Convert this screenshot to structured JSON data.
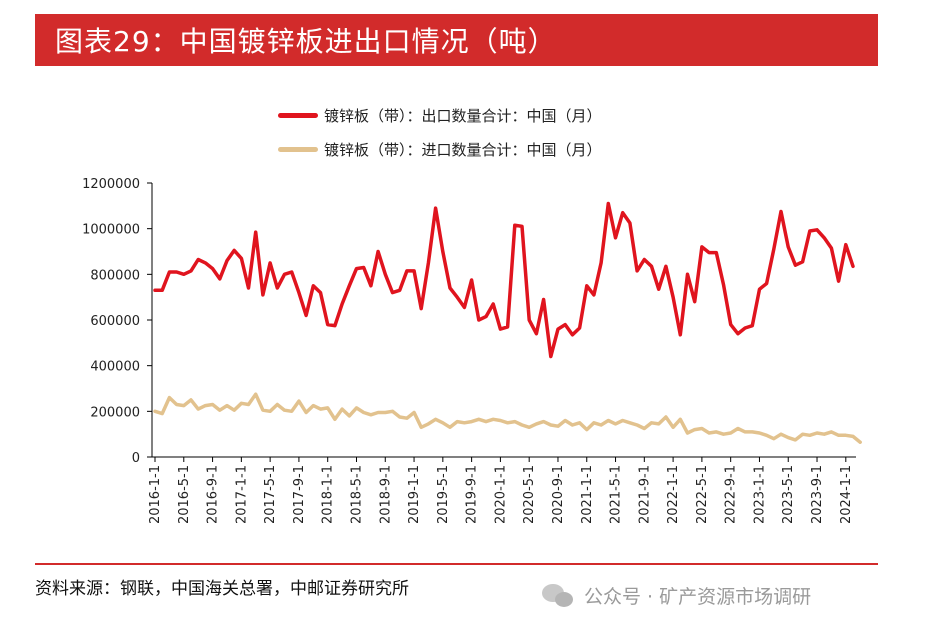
{
  "header": {
    "title": "图表29：中国镀锌板进出口情况（吨）"
  },
  "footer": {
    "source": "资料来源：钢联，中国海关总署，中邮证券研究所",
    "watermark": "公众号 · 矿产资源市场调研"
  },
  "colors": {
    "accent": "#d22b2b",
    "export_line": "#e0141e",
    "import_line": "#e2c28e"
  },
  "chart_data": {
    "type": "line",
    "title": "",
    "xlabel": "",
    "ylabel": "",
    "ylim": [
      0,
      1200000
    ],
    "y_ticks": [
      "0",
      "200000",
      "400000",
      "600000",
      "800000",
      "1000000",
      "1200000"
    ],
    "x_tick_labels": [
      "2016-1-1",
      "2016-5-1",
      "2016-9-1",
      "2017-1-1",
      "2017-5-1",
      "2017-9-1",
      "2018-1-1",
      "2018-5-1",
      "2018-9-1",
      "2019-1-1",
      "2019-5-1",
      "2019-9-1",
      "2020-1-1",
      "2020-5-1",
      "2020-9-1",
      "2021-1-1",
      "2021-5-1",
      "2021-9-1",
      "2022-1-1",
      "2022-5-1",
      "2022-9-1",
      "2023-1-1",
      "2023-5-1",
      "2023-9-1",
      "2024-1-1"
    ],
    "x_start": "2016-01",
    "frequency": "monthly",
    "grid": false,
    "legend_position": "top",
    "series": [
      {
        "name": "镀锌板（带）：出口数量合计：中国（月）",
        "values": [
          730000,
          730000,
          810000,
          810000,
          800000,
          815000,
          865000,
          850000,
          825000,
          780000,
          860000,
          905000,
          870000,
          740000,
          985000,
          710000,
          850000,
          740000,
          800000,
          810000,
          720000,
          620000,
          750000,
          720000,
          580000,
          575000,
          670000,
          750000,
          825000,
          830000,
          750000,
          900000,
          800000,
          720000,
          730000,
          815000,
          815000,
          650000,
          850000,
          1090000,
          900000,
          740000,
          700000,
          655000,
          775000,
          600000,
          615000,
          670000,
          560000,
          570000,
          1015000,
          1010000,
          600000,
          540000,
          690000,
          440000,
          560000,
          580000,
          535000,
          565000,
          750000,
          710000,
          850000,
          1110000,
          960000,
          1070000,
          1025000,
          815000,
          865000,
          835000,
          735000,
          835000,
          700000,
          535000,
          800000,
          680000,
          920000,
          895000,
          895000,
          755000,
          580000,
          540000,
          565000,
          575000,
          735000,
          760000,
          910000,
          1075000,
          920000,
          840000,
          855000,
          990000,
          995000,
          960000,
          915000,
          770000,
          930000,
          835000
        ]
      },
      {
        "name": "镀锌板（带）：进口数量合计：中国（月）",
        "values": [
          200000,
          190000,
          260000,
          230000,
          225000,
          250000,
          210000,
          225000,
          230000,
          205000,
          225000,
          205000,
          235000,
          230000,
          275000,
          205000,
          200000,
          230000,
          205000,
          200000,
          245000,
          195000,
          225000,
          210000,
          215000,
          165000,
          210000,
          180000,
          215000,
          195000,
          185000,
          195000,
          195000,
          200000,
          175000,
          170000,
          195000,
          130000,
          145000,
          165000,
          150000,
          130000,
          155000,
          150000,
          155000,
          165000,
          155000,
          165000,
          160000,
          150000,
          155000,
          140000,
          130000,
          145000,
          155000,
          140000,
          135000,
          160000,
          140000,
          150000,
          120000,
          150000,
          140000,
          160000,
          145000,
          160000,
          150000,
          140000,
          125000,
          150000,
          145000,
          175000,
          130000,
          165000,
          105000,
          120000,
          125000,
          105000,
          110000,
          100000,
          105000,
          125000,
          110000,
          110000,
          105000,
          95000,
          80000,
          100000,
          85000,
          75000,
          100000,
          95000,
          105000,
          100000,
          110000,
          95000,
          95000,
          90000,
          65000
        ]
      }
    ]
  }
}
